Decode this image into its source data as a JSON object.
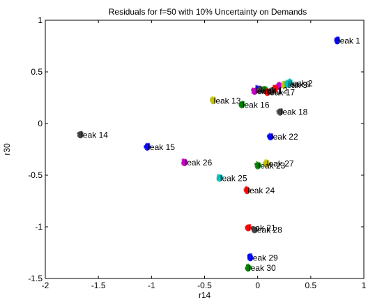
{
  "chart_data": {
    "type": "scatter",
    "title": "Residuals for f=50 with 10% Uncertainty on Demands",
    "xlabel": "r14",
    "ylabel": "r30",
    "xlim": [
      -2,
      1
    ],
    "ylim": [
      -1.5,
      1
    ],
    "x_ticks": [
      "-2",
      "-1.5",
      "-1",
      "-0.5",
      "0",
      "0.5",
      "1"
    ],
    "y_ticks": [
      "-1.5",
      "-1",
      "-0.5",
      "0",
      "0.5",
      "1"
    ],
    "grid": false,
    "points": [
      {
        "label": "leak 1",
        "x": 0.75,
        "y": 0.8,
        "color": "#0000ff"
      },
      {
        "label": "leak 2",
        "x": 0.3,
        "y": 0.39,
        "color": "#00bfbf"
      },
      {
        "label": "leak 3",
        "x": 0.25,
        "y": 0.37,
        "color": "#bfbf00"
      },
      {
        "label": "leak 8",
        "x": 0.28,
        "y": 0.38,
        "color": "#00bfbf"
      },
      {
        "label": "leak 17",
        "x": 0.09,
        "y": 0.3,
        "color": "#ff0000"
      },
      {
        "label": "leak 12",
        "x": 0.02,
        "y": 0.32,
        "color": "#404040"
      },
      {
        "label": "leak 11",
        "x": -0.03,
        "y": 0.31,
        "color": "#bf00bf"
      },
      {
        "label": "leak 13",
        "x": -0.42,
        "y": 0.22,
        "color": "#bfbf00"
      },
      {
        "label": "leak 16",
        "x": -0.15,
        "y": 0.18,
        "color": "#008000"
      },
      {
        "label": "leak 18",
        "x": 0.21,
        "y": 0.11,
        "color": "#404040"
      },
      {
        "label": "leak 14",
        "x": -1.67,
        "y": -0.11,
        "color": "#404040"
      },
      {
        "label": "leak 22",
        "x": 0.12,
        "y": -0.13,
        "color": "#0000ff"
      },
      {
        "label": "leak 15",
        "x": -1.04,
        "y": -0.23,
        "color": "#0000ff"
      },
      {
        "label": "leak 26",
        "x": -0.69,
        "y": -0.38,
        "color": "#bf00bf"
      },
      {
        "label": "leak 27",
        "x": 0.08,
        "y": -0.39,
        "color": "#bfbf00"
      },
      {
        "label": "leak 23",
        "x": 0.0,
        "y": -0.41,
        "color": "#008000"
      },
      {
        "label": "leak 25",
        "x": -0.36,
        "y": -0.53,
        "color": "#00bfbf"
      },
      {
        "label": "leak 24",
        "x": -0.1,
        "y": -0.65,
        "color": "#ff0000"
      },
      {
        "label": "leak 21",
        "x": -0.09,
        "y": -1.01,
        "color": "#ff0000"
      },
      {
        "label": "leak 28",
        "x": -0.03,
        "y": -1.03,
        "color": "#404040"
      },
      {
        "label": "leak 29",
        "x": -0.07,
        "y": -1.3,
        "color": "#0000ff"
      },
      {
        "label": "leak 30",
        "x": -0.09,
        "y": -1.4,
        "color": "#008000"
      }
    ],
    "extra_clusters": [
      {
        "x": 0.2,
        "y": 0.36,
        "color": "#bf00bf"
      },
      {
        "x": 0.16,
        "y": 0.33,
        "color": "#ff0000"
      },
      {
        "x": 0.06,
        "y": 0.33,
        "color": "#008000"
      },
      {
        "x": 0.0,
        "y": 0.33,
        "color": "#0000ff"
      },
      {
        "x": 0.13,
        "y": 0.31,
        "color": "#404040"
      }
    ]
  }
}
